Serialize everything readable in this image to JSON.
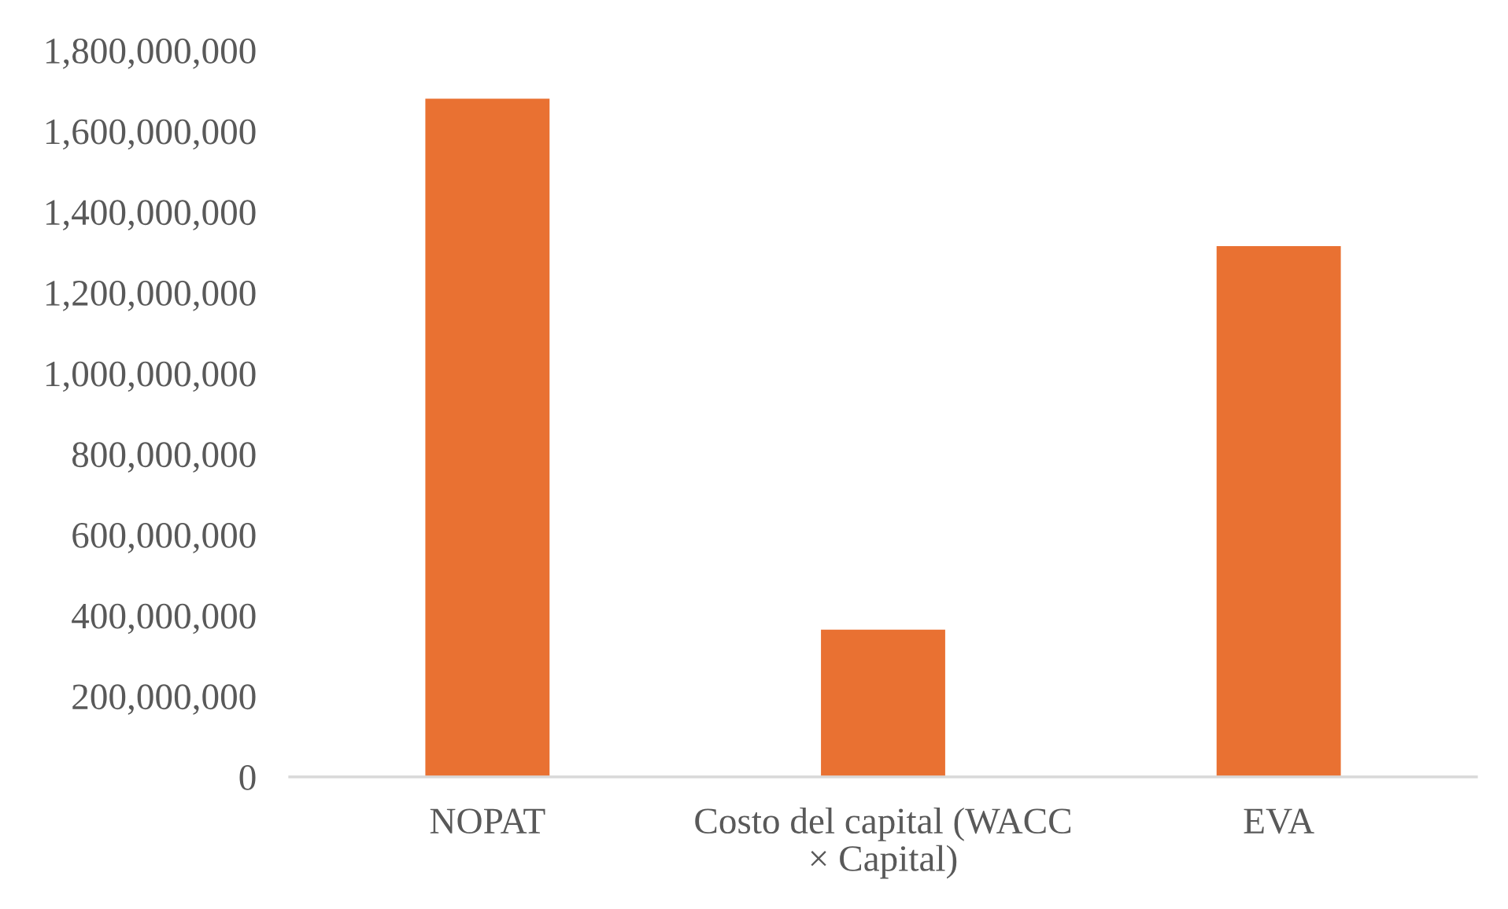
{
  "chart_data": {
    "type": "bar",
    "categories": [
      "NOPAT",
      "Costo del capital (WACC × Capital)",
      "EVA"
    ],
    "values": [
      1680000000,
      365000000,
      1315000000
    ],
    "color": "#e97132",
    "ylim": [
      0,
      1800000000
    ],
    "yticks": [
      {
        "value": 0,
        "label": "0"
      },
      {
        "value": 200000000,
        "label": "200,000,000"
      },
      {
        "value": 400000000,
        "label": "400,000,000"
      },
      {
        "value": 600000000,
        "label": "600,000,000"
      },
      {
        "value": 800000000,
        "label": "800,000,000"
      },
      {
        "value": 1000000000,
        "label": "1,000,000,000"
      },
      {
        "value": 1200000000,
        "label": "1,200,000,000"
      },
      {
        "value": 1400000000,
        "label": "1,400,000,000"
      },
      {
        "value": 1600000000,
        "label": "1,600,000,000"
      },
      {
        "value": 1800000000,
        "label": "1,800,000,000"
      }
    ],
    "grid": false,
    "legend": false
  }
}
